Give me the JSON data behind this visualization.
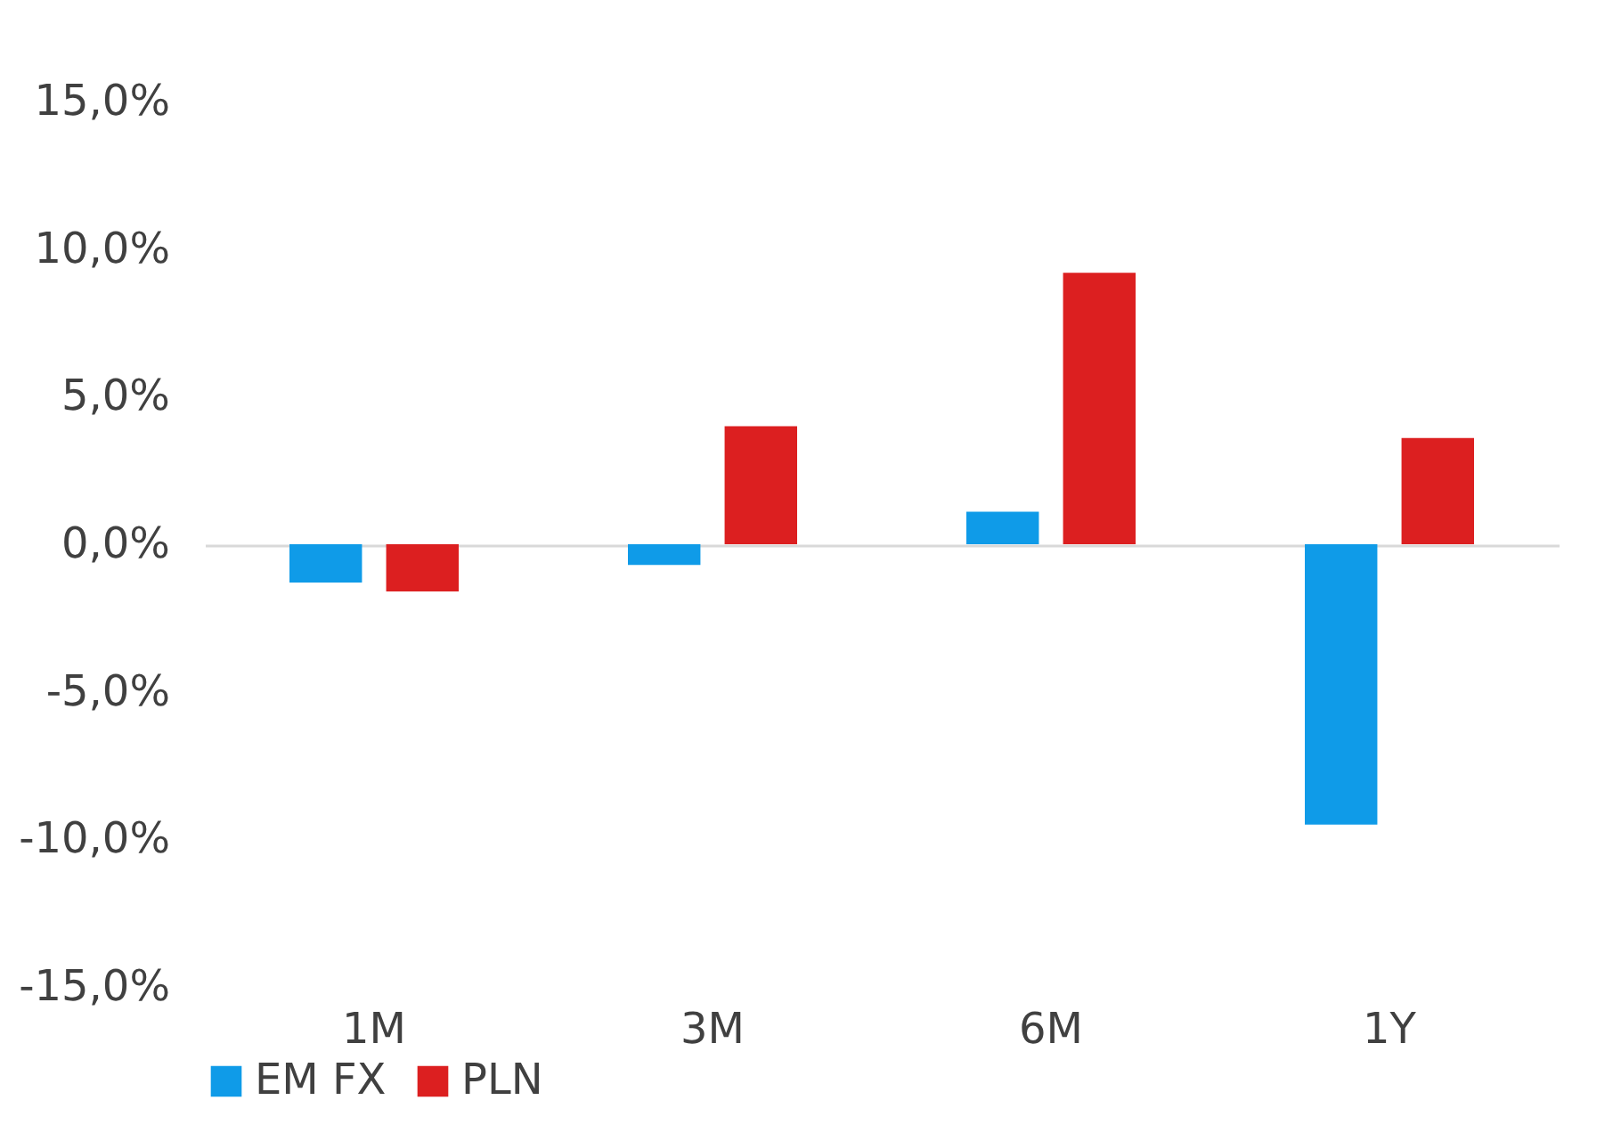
{
  "chart_data": {
    "type": "bar",
    "categories": [
      "1M",
      "3M",
      "6M",
      "1Y"
    ],
    "series": [
      {
        "name": "EM FX",
        "color": "#0f9be8",
        "values": [
          -1.3,
          -0.7,
          1.1,
          -9.5
        ]
      },
      {
        "name": "PLN",
        "color": "#dc1f20",
        "values": [
          -1.6,
          4.0,
          9.2,
          3.6
        ]
      }
    ],
    "ylim": [
      -15,
      15
    ],
    "yticks": [
      {
        "value": -15,
        "label": "-15,0%"
      },
      {
        "value": -10,
        "label": "-10,0%"
      },
      {
        "value": -5,
        "label": "-5,0%"
      },
      {
        "value": 0,
        "label": "0,0%"
      },
      {
        "value": 5,
        "label": "5,0%"
      },
      {
        "value": 10,
        "label": "10,0%"
      },
      {
        "value": 15,
        "label": "15,0%"
      }
    ],
    "legend": "bottom"
  }
}
